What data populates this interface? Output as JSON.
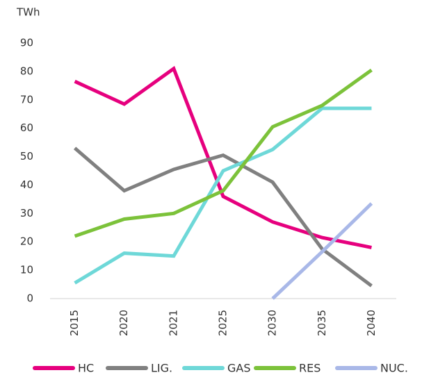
{
  "chart_data": {
    "type": "line",
    "y_axis_label": "TWh",
    "categories": [
      "2015",
      "2020",
      "2021",
      "2025",
      "2030",
      "2035",
      "2040"
    ],
    "series": [
      {
        "name": "HC",
        "color": "#e6007e",
        "values": [
          76.5,
          68.5,
          81,
          36,
          27,
          21.5,
          18
        ]
      },
      {
        "name": "LIG.",
        "color": "#808080",
        "values": [
          53,
          38,
          45.5,
          50.5,
          41,
          17.5,
          4.5
        ]
      },
      {
        "name": "GAS",
        "color": "#6ed8d8",
        "values": [
          5.5,
          16,
          15,
          45,
          52.5,
          67,
          67
        ]
      },
      {
        "name": "RES",
        "color": "#7cc23a",
        "values": [
          22,
          28,
          30,
          38,
          60.5,
          68,
          80.5
        ]
      },
      {
        "name": "NUC.",
        "color": "#a9b8e8",
        "values": [
          null,
          null,
          null,
          null,
          0,
          16.5,
          33.5
        ]
      }
    ],
    "ylim": [
      0,
      90
    ],
    "yticks": [
      0,
      10,
      20,
      30,
      40,
      50,
      60,
      70,
      80,
      90
    ],
    "grid": false,
    "legend": "bottom"
  }
}
